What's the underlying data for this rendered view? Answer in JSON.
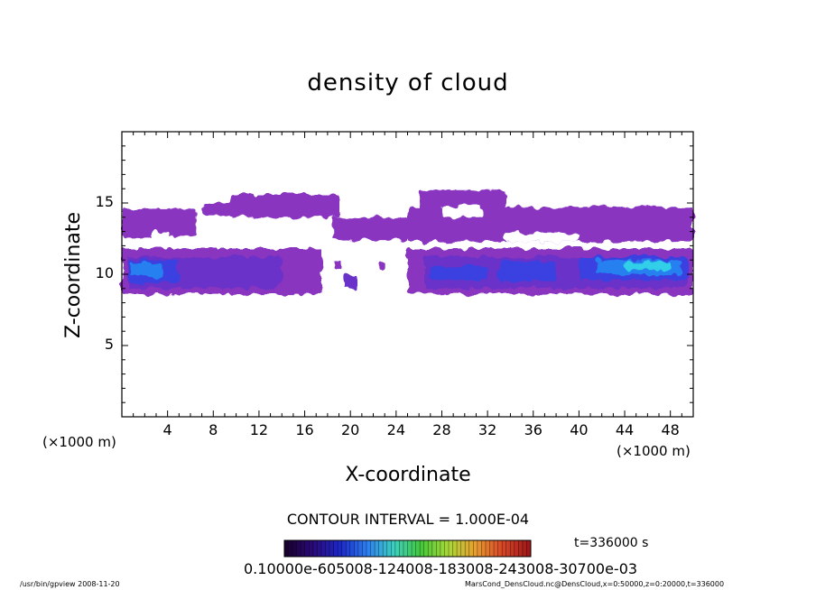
{
  "chart_data": {
    "type": "heatmap",
    "title": "density of cloud",
    "xlabel": "X-coordinate",
    "ylabel": "Z-coordinate",
    "x_unit": "(×1000 m)",
    "xlim": [
      0,
      50
    ],
    "ylim": [
      0,
      20
    ],
    "x_ticks": [
      "4",
      "8",
      "12",
      "16",
      "20",
      "24",
      "28",
      "32",
      "36",
      "40",
      "44",
      "48"
    ],
    "y_ticks": [
      "5",
      "10",
      "15"
    ],
    "contour_interval": "CONTOUR INTERVAL = 1.000E-04",
    "time_label": "t=336000 s",
    "colorbar_labels": "0.10000e-605008-124008-183008-243008-30700e-03",
    "colorbar_colors": [
      "#1a0030",
      "#2a0a7a",
      "#1c28c8",
      "#2d7ff0",
      "#3cd0c0",
      "#44c83a",
      "#a8d838",
      "#e8a030",
      "#d84828",
      "#a01818"
    ],
    "color_levels": {
      "very_low": "#8a35c0",
      "low": "#6a30c8",
      "mid": "#3a40e0",
      "high": "#2880f0",
      "peak": "#30d0e8"
    },
    "cloud_regions": [
      {
        "x_range": [
          0,
          6.5
        ],
        "z_range": [
          12.6,
          14.6
        ],
        "level": "very_low"
      },
      {
        "x_range": [
          7,
          11
        ],
        "z_range": [
          14.2,
          15.0
        ],
        "level": "very_low"
      },
      {
        "x_range": [
          9.5,
          19
        ],
        "z_range": [
          14.0,
          15.6
        ],
        "level": "very_low"
      },
      {
        "x_range": [
          18.5,
          25
        ],
        "z_range": [
          12.4,
          14.0
        ],
        "level": "very_low"
      },
      {
        "x_range": [
          25,
          50
        ],
        "z_range": [
          12.3,
          14.7
        ],
        "level": "very_low"
      },
      {
        "x_range": [
          26,
          33.5
        ],
        "z_range": [
          14.5,
          15.9
        ],
        "level": "very_low"
      },
      {
        "x_range": [
          0,
          17.5
        ],
        "z_range": [
          8.6,
          11.8
        ],
        "level": "very_low"
      },
      {
        "x_range": [
          25,
          50
        ],
        "z_range": [
          8.6,
          11.8
        ],
        "level": "very_low"
      },
      {
        "x_range": [
          0.5,
          14
        ],
        "z_range": [
          9.0,
          11.2
        ],
        "level": "low"
      },
      {
        "x_range": [
          26.5,
          49.5
        ],
        "z_range": [
          9.0,
          11.2
        ],
        "level": "low"
      },
      {
        "x_range": [
          0.6,
          5
        ],
        "z_range": [
          9.4,
          11.0
        ],
        "level": "mid"
      },
      {
        "x_range": [
          27,
          32
        ],
        "z_range": [
          9.6,
          10.6
        ],
        "level": "mid"
      },
      {
        "x_range": [
          33,
          38
        ],
        "z_range": [
          9.5,
          10.9
        ],
        "level": "mid"
      },
      {
        "x_range": [
          40,
          49.5
        ],
        "z_range": [
          9.6,
          11.2
        ],
        "level": "mid"
      },
      {
        "x_range": [
          0.8,
          3.5
        ],
        "z_range": [
          9.8,
          10.8
        ],
        "level": "high"
      },
      {
        "x_range": [
          41.5,
          49
        ],
        "z_range": [
          10.0,
          11.0
        ],
        "level": "high"
      },
      {
        "x_range": [
          44,
          48
        ],
        "z_range": [
          10.3,
          10.9
        ],
        "level": "peak"
      },
      {
        "x_range": [
          19.5,
          20.5
        ],
        "z_range": [
          9.0,
          10.0
        ],
        "level": "low"
      },
      {
        "x_range": [
          18.5,
          19.2
        ],
        "z_range": [
          10.4,
          11.0
        ],
        "level": "very_low"
      },
      {
        "x_range": [
          22.5,
          23.0
        ],
        "z_range": [
          10.3,
          10.9
        ],
        "level": "very_low"
      },
      {
        "x_range": [
          25.0,
          25.6
        ],
        "z_range": [
          10.0,
          10.6
        ],
        "level": "very_low"
      }
    ],
    "clear_regions": [
      {
        "x_range": [
          28,
          31.5
        ],
        "z_range": [
          14.0,
          14.8
        ]
      },
      {
        "x_range": [
          2.5,
          4.2
        ],
        "z_range": [
          12.3,
          13.0
        ]
      },
      {
        "x_range": [
          33.5,
          40
        ],
        "z_range": [
          12.3,
          12.9
        ]
      }
    ]
  },
  "footer": {
    "left": "/usr/bin/gpview  2008-11-20",
    "right": "MarsCond_DensCloud.nc@DensCloud,x=0:50000,z=0:20000,t=336000"
  }
}
